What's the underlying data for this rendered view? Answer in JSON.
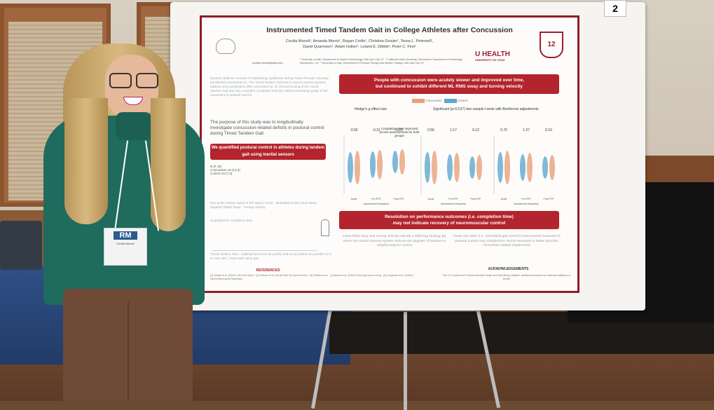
{
  "poster": {
    "number_tag": "2",
    "title": "Instrumented Timed Tandem Gait in College Athletes after Concussion",
    "authors_line1": "Cecilia Monoli¹, Amanda Morris¹, Regan Crofts¹, Christina Geisler¹, Tessa L. Petersell¹,",
    "authors_line2": "David Quammen¹, Adam Hollen², Leland E. Dibble³, Peter C. Fino¹",
    "affiliations": "¹ University of Utah, Department of Health & Kinesiology, Salt Lake City, UT · ² California State University, Sacramento, Department of Kinesiology, Sacramento, CA · ³ University of Utah, Department of Physical Therapy and Athletic Training, Salt Lake City, UT",
    "email": "cecilia.monoli@utah.edu",
    "logo_health": "HEALTH",
    "logo_university": "UNIVERSITY OF UTAH",
    "logo_pac12": "12",
    "intro": "Dynamic balance consists of maintaining equilibrium during motion through voluntary transitional movements [1]. The Timed Tandem Gait test is used to assess dynamic balance and coordination after concussion [2, 3]. Clinical scoring of the Timed Tandem Gait test only considers completion time [4], without assessing quality of the movement or postural metrics.",
    "purpose": "The purpose of this study was to longitudinally investigate concussion-related deficits in postural control during Timed Tandem Gait",
    "methods_bar": "We quantified postural control in athletes during tandem gait using inertial sensors",
    "table_header": "N (F, M)",
    "table_rows": [
      "Concussion 16 (13,3)",
      "Control 10 (7,3)"
    ],
    "imu_text": "IMU at the lumbar region of the spine (~L3/4) · Mediolateral (ML) Root Mean Squared (RMS) Sway · Turning velocity",
    "stopwatch_text": "Stopwatch for completion time",
    "task_text": "Timed Tandem Gait = walking heel to toe as quickly and as accurately as possible for 3 m, turn 180°, return with same gait",
    "result_bar1_line1": "People with concussion were acutely slower and improved over time,",
    "result_bar1_line2": "but continued to exhibit different ML RMS sway and turning velocity",
    "legend_concussed": "Concussed",
    "legend_control": "Control",
    "hedges_label": "Hedge's g effect size",
    "hedges_values": [
      "-0.55",
      "-0.31",
      "-0.20"
    ],
    "sig_label": "Significant (p<0.017) two sample t-tests with Bonferroni adjustments",
    "sig_values": [
      "0.56",
      "1.17",
      "0.12",
      "0.70",
      "1.37",
      "0.10"
    ],
    "completion_note": "Completion time improved across assessments for both groups",
    "x_ticks": [
      "Acute",
      "Pre RTP",
      "Post RTP"
    ],
    "x_label": "Assessment timepoints",
    "result_bar2_line1": "Resolution on performance outcomes (i.e. completion time)",
    "result_bar2_line2": "may not indicate recovery of neuromuscular control",
    "conclusion_left": "Lower RMS sway and turning velocity indicate a stiffening strategy [5], where the central nervous system reduces the degrees of freedom to simplify balance control",
    "conclusion_right": "These and other (i.e. normalized gait metrics) instrumented measures of postural control may complement clinical measures to better describe concussion-related impairments",
    "references_heading": "REFERENCES",
    "references": "[1] Howell et al. (2019) J Sci Med Sport · [2] Oldham et al. (2018) Med Sci Sports Exerc · [3] Oldham et al. · [4] Morris et al. (2023) Front Sports Act Living · [5] Carpenter et al. (2004) J Neurol Neurosurg Psychiatry",
    "ack_heading": "ACKNOWLEDGEMENTS",
    "ack": "Pac-12 Conference's Student-Athlete Health and Well-Being Initiative. Additional funding from National Institutes of Health"
  },
  "badge": {
    "logo": "RM",
    "line1": "Cecilia Monoli"
  },
  "colors": {
    "poster_red": "#b3242c",
    "concussed": "#e8a07a",
    "control": "#5fa7cf",
    "sweater": "#1f6b5d"
  }
}
